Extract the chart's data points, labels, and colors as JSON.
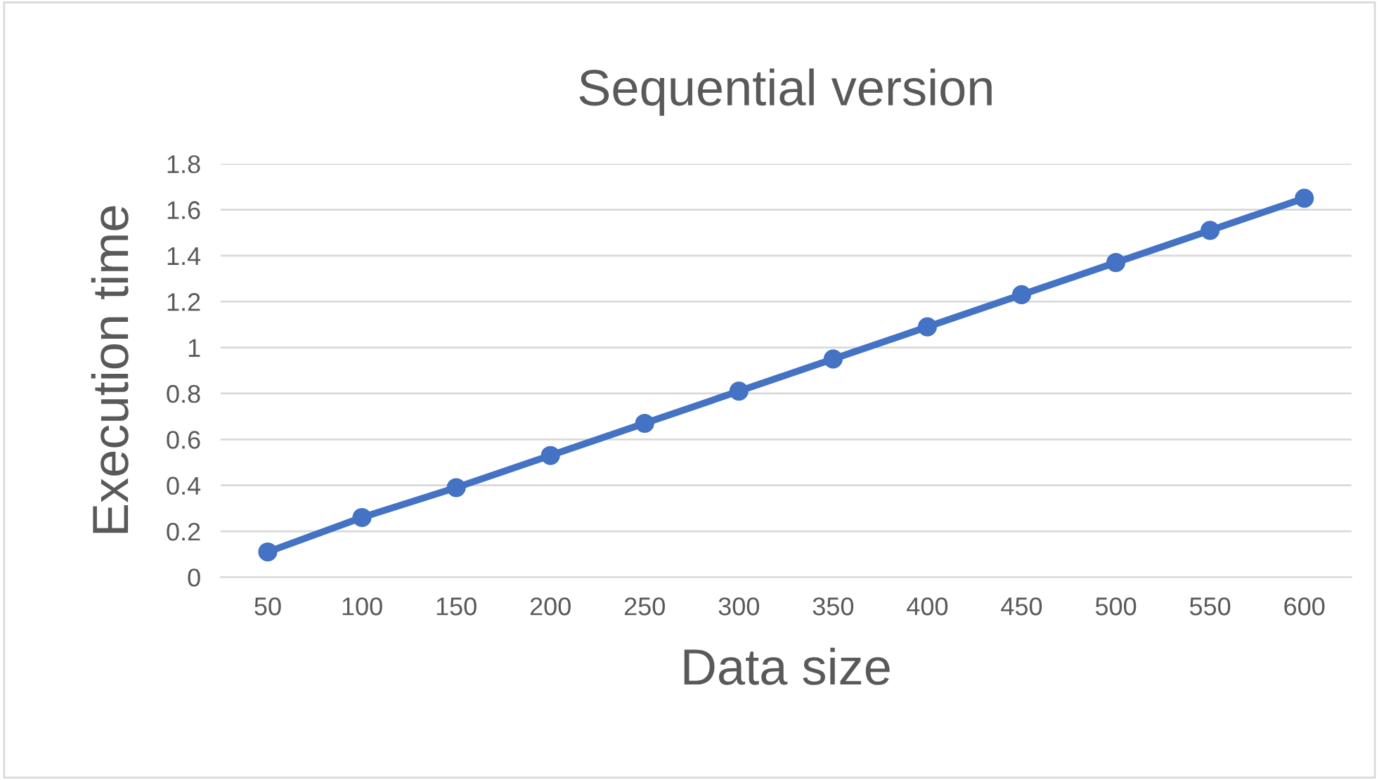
{
  "chart_data": {
    "type": "line",
    "title": "Sequential version",
    "xlabel": "Data size",
    "ylabel": "Execution time",
    "categories": [
      "50",
      "100",
      "150",
      "200",
      "250",
      "300",
      "350",
      "400",
      "450",
      "500",
      "550",
      "600"
    ],
    "series": [
      {
        "color": "#4472c4",
        "values": [
          0.11,
          0.26,
          0.39,
          0.53,
          0.67,
          0.81,
          0.95,
          1.09,
          1.23,
          1.37,
          1.51,
          1.65
        ]
      }
    ],
    "ylim": [
      0,
      1.8
    ],
    "yticks": [
      0,
      0.2,
      0.4,
      0.6,
      0.8,
      1,
      1.2,
      1.4,
      1.6,
      1.8
    ],
    "grid": "y",
    "marker": "circle",
    "line_style": "solid",
    "legend": false
  }
}
